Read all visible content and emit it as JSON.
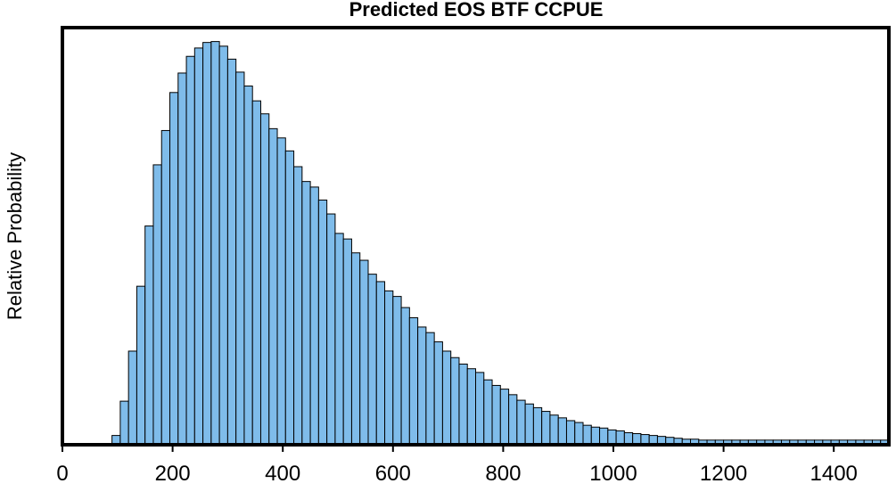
{
  "chart_data": {
    "type": "bar",
    "title": "Predicted EOS BTF CCPUE",
    "xlabel": "",
    "ylabel": "Relative Probability",
    "xlim": [
      0,
      1500
    ],
    "ylim": [
      0,
      450
    ],
    "bin_width": 15,
    "x_ticks": [
      0,
      200,
      400,
      600,
      800,
      1000,
      1200,
      1400
    ],
    "bar_color": "#7fbcea",
    "grid": false,
    "bins_start": [
      90,
      105,
      120,
      135,
      150,
      165,
      180,
      195,
      210,
      225,
      240,
      255,
      270,
      285,
      300,
      315,
      330,
      345,
      360,
      375,
      390,
      405,
      420,
      435,
      450,
      465,
      480,
      495,
      510,
      525,
      540,
      555,
      570,
      585,
      600,
      615,
      630,
      645,
      660,
      675,
      690,
      705,
      720,
      735,
      750,
      765,
      780,
      795,
      810,
      825,
      840,
      855,
      870,
      885,
      900,
      915,
      930,
      945,
      960,
      975,
      990,
      1005,
      1020,
      1035,
      1050,
      1065,
      1080,
      1095,
      1110,
      1125,
      1140,
      1155,
      1170,
      1185,
      1200,
      1215,
      1230,
      1245,
      1260,
      1275,
      1290,
      1305,
      1320,
      1335,
      1350,
      1365,
      1380,
      1395,
      1410,
      1425,
      1440,
      1455,
      1470,
      1485
    ],
    "values": [
      10,
      47,
      101,
      171,
      236,
      302,
      339,
      380,
      401,
      419,
      428,
      434,
      435,
      430,
      416,
      402,
      387,
      371,
      357,
      341,
      331,
      317,
      300,
      284,
      278,
      264,
      249,
      228,
      222,
      207,
      199,
      184,
      176,
      166,
      160,
      148,
      137,
      127,
      121,
      111,
      101,
      94,
      87,
      82,
      78,
      70,
      64,
      60,
      54,
      48,
      44,
      40,
      36,
      32,
      29,
      26,
      24,
      21,
      19,
      18,
      16,
      15,
      13,
      12,
      11,
      10,
      9,
      8,
      7,
      6,
      6,
      5,
      5,
      5,
      5,
      5,
      5,
      5,
      5,
      5,
      5,
      5,
      5,
      5,
      5,
      5,
      5,
      5,
      5,
      5,
      5,
      5,
      5,
      5
    ]
  }
}
